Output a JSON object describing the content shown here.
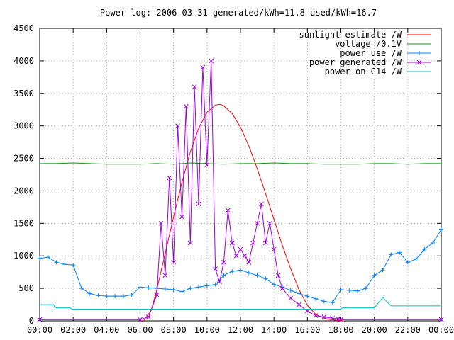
{
  "chart_data": {
    "type": "line",
    "title": "Power log: 2006-03-31 generated/kWh=11.8 used/kWh=16.7",
    "xlabel": "",
    "ylabel": "",
    "xlim": [
      "00:00",
      "24:00"
    ],
    "ylim": [
      0,
      4500
    ],
    "x_ticks": [
      "00:00",
      "02:00",
      "04:00",
      "06:00",
      "08:00",
      "10:00",
      "12:00",
      "14:00",
      "16:00",
      "18:00",
      "20:00",
      "22:00",
      "00:00"
    ],
    "y_ticks": [
      0,
      500,
      1000,
      1500,
      2000,
      2500,
      3000,
      3500,
      4000,
      4500
    ],
    "grid": true,
    "legend_position": "top-right",
    "series": [
      {
        "name": "sunlight estimate /W",
        "color": "#ff0000",
        "marker": "none",
        "x": [
          "06:12",
          "06:40",
          "07:00",
          "07:30",
          "08:00",
          "08:30",
          "09:00",
          "09:30",
          "10:00",
          "10:30",
          "10:48",
          "11:00",
          "11:30",
          "12:00",
          "12:30",
          "13:00",
          "13:30",
          "14:00",
          "14:30",
          "15:00",
          "15:30",
          "16:00",
          "16:30",
          "17:00",
          "17:30",
          "18:00",
          "18:10"
        ],
        "y": [
          0,
          160,
          480,
          1040,
          1600,
          2130,
          2600,
          2960,
          3210,
          3320,
          3330,
          3310,
          3190,
          2980,
          2690,
          2340,
          1960,
          1560,
          1160,
          800,
          480,
          240,
          100,
          40,
          15,
          5,
          0
        ]
      },
      {
        "name": "voltage /0.1V",
        "color": "#00a000",
        "marker": "none",
        "x": [
          "00:00",
          "01:00",
          "02:00",
          "03:00",
          "04:00",
          "05:00",
          "06:00",
          "07:00",
          "08:00",
          "09:00",
          "10:00",
          "11:00",
          "12:00",
          "13:00",
          "14:00",
          "15:00",
          "16:00",
          "17:00",
          "18:00",
          "19:00",
          "20:00",
          "21:00",
          "22:00",
          "23:00",
          "24:00"
        ],
        "y": [
          2420,
          2420,
          2430,
          2420,
          2410,
          2410,
          2410,
          2420,
          2410,
          2430,
          2420,
          2410,
          2420,
          2420,
          2430,
          2420,
          2420,
          2410,
          2410,
          2410,
          2420,
          2420,
          2410,
          2420,
          2420
        ]
      },
      {
        "name": "power use /W",
        "color": "#0080ff",
        "marker": "plus",
        "x": [
          "00:00",
          "00:30",
          "01:00",
          "01:30",
          "02:00",
          "02:30",
          "03:00",
          "03:30",
          "04:00",
          "04:30",
          "05:00",
          "05:30",
          "06:00",
          "06:30",
          "07:00",
          "07:30",
          "08:00",
          "08:30",
          "09:00",
          "09:30",
          "10:00",
          "10:30",
          "11:00",
          "11:30",
          "12:00",
          "12:30",
          "13:00",
          "13:30",
          "14:00",
          "14:30",
          "15:00",
          "15:30",
          "16:00",
          "16:30",
          "17:00",
          "17:30",
          "18:00",
          "18:30",
          "19:00",
          "19:30",
          "20:00",
          "20:30",
          "21:00",
          "21:30",
          "22:00",
          "22:30",
          "23:00",
          "23:30",
          "24:00"
        ],
        "y": [
          960,
          980,
          900,
          870,
          860,
          500,
          420,
          390,
          380,
          380,
          380,
          400,
          520,
          510,
          500,
          490,
          480,
          450,
          500,
          520,
          540,
          560,
          700,
          760,
          780,
          740,
          700,
          650,
          560,
          520,
          470,
          420,
          380,
          340,
          300,
          280,
          480,
          470,
          460,
          500,
          700,
          780,
          1020,
          1050,
          900,
          950,
          1100,
          1200,
          1400
        ]
      },
      {
        "name": "power generated /W",
        "color": "#a000e0",
        "marker": "x",
        "x": [
          "00:00",
          "06:00",
          "06:30",
          "07:00",
          "07:15",
          "07:30",
          "07:45",
          "08:00",
          "08:15",
          "08:30",
          "08:45",
          "09:00",
          "09:15",
          "09:30",
          "09:45",
          "10:00",
          "10:15",
          "10:30",
          "10:45",
          "11:00",
          "11:15",
          "11:30",
          "11:45",
          "12:00",
          "12:15",
          "12:30",
          "12:45",
          "13:00",
          "13:15",
          "13:30",
          "13:45",
          "14:00",
          "14:15",
          "14:30",
          "15:00",
          "15:30",
          "16:00",
          "16:30",
          "17:00",
          "17:30",
          "17:50",
          "18:00",
          "24:00"
        ],
        "y": [
          20,
          20,
          60,
          400,
          1500,
          700,
          2200,
          900,
          3000,
          1600,
          3300,
          1200,
          3600,
          1800,
          3900,
          2400,
          4000,
          800,
          600,
          900,
          1700,
          1200,
          1000,
          1100,
          1000,
          900,
          1200,
          1500,
          1800,
          1200,
          1500,
          1100,
          700,
          500,
          350,
          250,
          150,
          80,
          60,
          40,
          30,
          20,
          20
        ]
      },
      {
        "name": "power on C14 /W",
        "color": "#00c0c0",
        "marker": "none",
        "x": [
          "00:00",
          "00:50",
          "00:55",
          "01:50",
          "01:55",
          "06:00",
          "06:05",
          "18:00",
          "18:05",
          "19:50",
          "20:00",
          "20:30",
          "21:00",
          "24:00"
        ],
        "y": [
          250,
          250,
          200,
          200,
          180,
          180,
          180,
          180,
          200,
          200,
          200,
          360,
          230,
          230
        ]
      }
    ]
  }
}
